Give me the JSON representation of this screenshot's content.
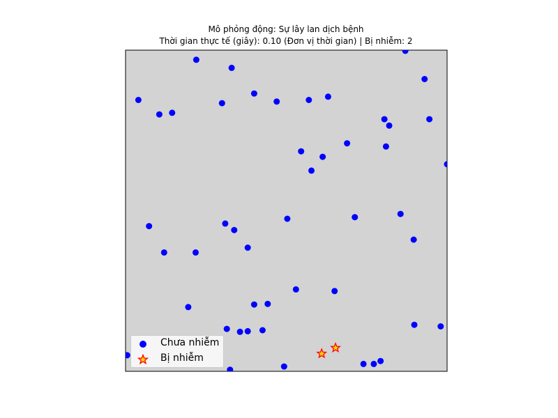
{
  "chart_data": {
    "type": "scatter",
    "title": "Mô phỏng động: Sự lây lan dịch bệnh",
    "subtitle": "Thời gian thực tế (giây): 0.10 (Đơn vị thời gian) | Bị nhiễm: 2",
    "xlabel": "",
    "ylabel": "",
    "xlim": [
      0,
      100
    ],
    "ylim": [
      0,
      100
    ],
    "axis_ticks": "hidden",
    "grid": false,
    "background_color": "#d3d3d3",
    "legend_placement": "lower-left",
    "series": [
      {
        "name": "Chưa nhiễm",
        "marker": "circle",
        "color": "#0000ff",
        "points": [
          [
            22.0,
            97.0
          ],
          [
            33.0,
            94.5
          ],
          [
            87.0,
            99.8
          ],
          [
            93.0,
            91.0
          ],
          [
            4.0,
            84.5
          ],
          [
            10.5,
            80.0
          ],
          [
            14.5,
            80.5
          ],
          [
            30.0,
            83.5
          ],
          [
            40.0,
            86.5
          ],
          [
            47.0,
            84.0
          ],
          [
            57.0,
            84.5
          ],
          [
            63.0,
            85.5
          ],
          [
            80.5,
            78.5
          ],
          [
            82.0,
            76.5
          ],
          [
            94.5,
            78.5
          ],
          [
            68.9,
            71.0
          ],
          [
            81.0,
            70.0
          ],
          [
            54.6,
            68.5
          ],
          [
            61.3,
            66.8
          ],
          [
            57.8,
            62.5
          ],
          [
            100.0,
            64.5
          ],
          [
            7.3,
            45.2
          ],
          [
            31.0,
            46.0
          ],
          [
            33.8,
            44.0
          ],
          [
            50.3,
            47.5
          ],
          [
            71.3,
            48.0
          ],
          [
            85.5,
            49.0
          ],
          [
            89.6,
            41.0
          ],
          [
            12.0,
            37.0
          ],
          [
            21.8,
            37.0
          ],
          [
            38.0,
            38.5
          ],
          [
            53.0,
            25.5
          ],
          [
            65.0,
            25.0
          ],
          [
            19.5,
            20.0
          ],
          [
            40.0,
            20.8
          ],
          [
            44.2,
            21.0
          ],
          [
            31.5,
            13.2
          ],
          [
            35.6,
            12.3
          ],
          [
            38.0,
            12.5
          ],
          [
            42.6,
            12.8
          ],
          [
            89.8,
            14.5
          ],
          [
            98.0,
            14.0
          ],
          [
            0.5,
            5.0
          ],
          [
            32.5,
            0.5
          ],
          [
            49.3,
            1.5
          ],
          [
            74.0,
            2.3
          ],
          [
            77.2,
            2.3
          ],
          [
            79.3,
            3.2
          ]
        ]
      },
      {
        "name": "Bị nhiễm",
        "marker": "star",
        "color": "#ff0000",
        "edge_color": "#ffd700",
        "points": [
          [
            61.0,
            5.5
          ],
          [
            65.3,
            7.3
          ]
        ]
      }
    ]
  }
}
